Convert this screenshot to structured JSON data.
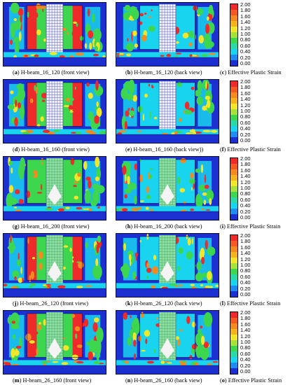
{
  "colors": {
    "blue": "#1c2fd0",
    "cyan": "#19d4ef",
    "green": "#3dd64f",
    "yellow": "#f1e62a",
    "orange": "#f28a1f",
    "red": "#ef2a2a",
    "white": "#f4f4f4"
  },
  "legend_scale": {
    "ticks": [
      "2.00",
      "1.80",
      "1.60",
      "1.40",
      "1.20",
      "1.00",
      "0.80",
      "0.60",
      "0.40",
      "0.20",
      "0.00"
    ],
    "colors": [
      "#ef2a2a",
      "#f25a22",
      "#f28a1f",
      "#f3b31f",
      "#f1e62a",
      "#a6e23a",
      "#3dd64f",
      "#2ad8a8",
      "#19d4ef",
      "#1e8cf0",
      "#1c2fd0"
    ]
  },
  "rows": [
    {
      "front": {
        "tag": "a",
        "caption": "H-beam_16_120 (front view)"
      },
      "back": {
        "tag": "b",
        "caption": "H-beam_16_120 (back view)"
      },
      "legend": {
        "tag": "c",
        "caption": "Effective Plastic Strain"
      }
    },
    {
      "front": {
        "tag": "d",
        "caption": "H-beam_16_160 (front view)"
      },
      "back": {
        "tag": "e",
        "caption": "H-beam_16_160 (back view))"
      },
      "legend": {
        "tag": "f",
        "caption": "Effective Plastic Strain"
      }
    },
    {
      "front": {
        "tag": "g",
        "caption": "H-beam_16_200 (front view)"
      },
      "back": {
        "tag": "h",
        "caption": "H-beam_16_200 (back view)"
      },
      "legend": {
        "tag": "i",
        "caption": "Effective Plastic Strain"
      }
    },
    {
      "front": {
        "tag": "j",
        "caption": "H-beam_26_120 (front view)"
      },
      "back": {
        "tag": "k",
        "caption": "H-beam_26_120 (back view)"
      },
      "legend": {
        "tag": "l",
        "caption": "Effective Plastic Strain"
      }
    },
    {
      "front": {
        "tag": "m",
        "caption": "H-beam_26_160 (front view)"
      },
      "back": {
        "tag": "n",
        "caption": "H-beam_26_160 (back view)"
      },
      "legend": {
        "tag": "o",
        "caption": "Effective Plastic Strain"
      }
    }
  ]
}
